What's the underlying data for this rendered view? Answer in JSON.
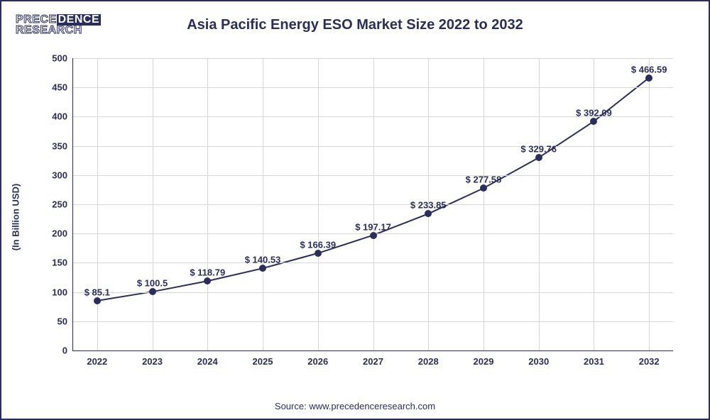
{
  "logo": {
    "line1_outline": "PRECE",
    "line1_solid": "DENCE",
    "line2": "RESEARCH"
  },
  "chart": {
    "type": "line",
    "title": "Asia Pacific Energy ESO Market Size 2022 to 2032",
    "title_fontsize": 20,
    "ylabel": "(In Billion USD)",
    "label_fontsize": 13,
    "source": "Source: www.precedenceresearch.com",
    "categories": [
      "2022",
      "2023",
      "2024",
      "2025",
      "2026",
      "2027",
      "2028",
      "2029",
      "2030",
      "2031",
      "2032"
    ],
    "values": [
      85.1,
      100.5,
      118.79,
      140.53,
      166.39,
      197.17,
      233.85,
      277.58,
      329.76,
      392.09,
      466.59
    ],
    "data_labels": [
      "$ 85.1",
      "$ 100.5",
      "$ 118.79",
      "$ 140.53",
      "$ 166.39",
      "$ 197.17",
      "$ 233.85",
      "$ 277.58",
      "$ 329.76",
      "$ 392.09",
      "$ 466.59"
    ],
    "ylim": [
      0,
      500
    ],
    "ytick_step": 50,
    "yticks": [
      0,
      50,
      100,
      150,
      200,
      250,
      300,
      350,
      400,
      450,
      500
    ],
    "line_color": "#2a2e5a",
    "line_width": 2,
    "marker_color": "#2a2e5a",
    "marker_size": 10,
    "grid_color": "#d6d6d6",
    "axis_color": "#2a2e5a",
    "background_color": "#ffffff",
    "border_color": "#2a2e5a",
    "text_color": "#2a2e5a",
    "tick_fontsize": 13
  }
}
